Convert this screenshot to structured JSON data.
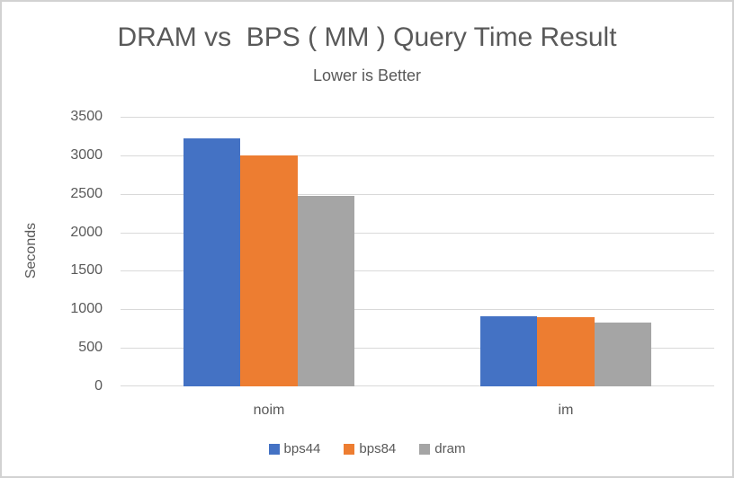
{
  "chart_data": {
    "type": "bar",
    "title": "DRAM vs  BPS ( MM ) Query Time Result",
    "subtitle": "Lower is Better",
    "xlabel": "",
    "ylabel": "Seconds",
    "categories": [
      "noim",
      "im"
    ],
    "series": [
      {
        "name": "bps44",
        "color": "#4472C4",
        "values": [
          3220,
          910
        ]
      },
      {
        "name": "bps84",
        "color": "#ED7D31",
        "values": [
          3000,
          900
        ]
      },
      {
        "name": "dram",
        "color": "#A5A5A5",
        "values": [
          2470,
          830
        ]
      }
    ],
    "ylim": [
      0,
      3500
    ],
    "yticks": [
      0,
      500,
      1000,
      1500,
      2000,
      2500,
      3000,
      3500
    ],
    "grid": true,
    "legend_position": "bottom"
  },
  "colors": {
    "text": "#595959",
    "gridline": "#D9D9D9",
    "baseline": "#D9D9D9",
    "background": "#FFFFFF",
    "frame_border": "#D2D2D2"
  }
}
